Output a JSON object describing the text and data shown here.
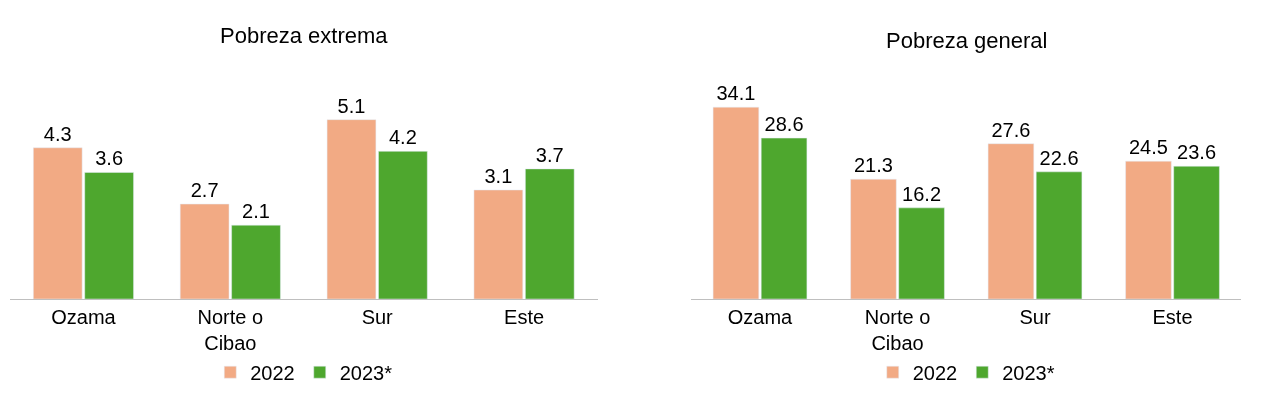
{
  "chart_data": [
    {
      "type": "bar",
      "title": "Pobreza extrema",
      "categories": [
        "Ozama",
        "Norte o Cibao",
        "Sur",
        "Este"
      ],
      "series": [
        {
          "name": "2022",
          "color": "#f2aa84",
          "values": [
            4.3,
            2.7,
            5.1,
            3.1
          ]
        },
        {
          "name": "2023*",
          "color": "#4ea72e",
          "values": [
            3.6,
            2.1,
            4.2,
            3.7
          ]
        }
      ],
      "data_labels": true,
      "legend": "bottom"
    },
    {
      "type": "bar",
      "title": "Pobreza general",
      "categories": [
        "Ozama",
        "Norte o Cibao",
        "Sur",
        "Este"
      ],
      "series": [
        {
          "name": "2022",
          "color": "#f2aa84",
          "values": [
            34.1,
            21.3,
            27.6,
            24.5
          ]
        },
        {
          "name": "2023*",
          "color": "#4ea72e",
          "values": [
            28.6,
            16.2,
            22.6,
            23.6
          ]
        }
      ],
      "data_labels": true,
      "legend": "bottom"
    }
  ]
}
